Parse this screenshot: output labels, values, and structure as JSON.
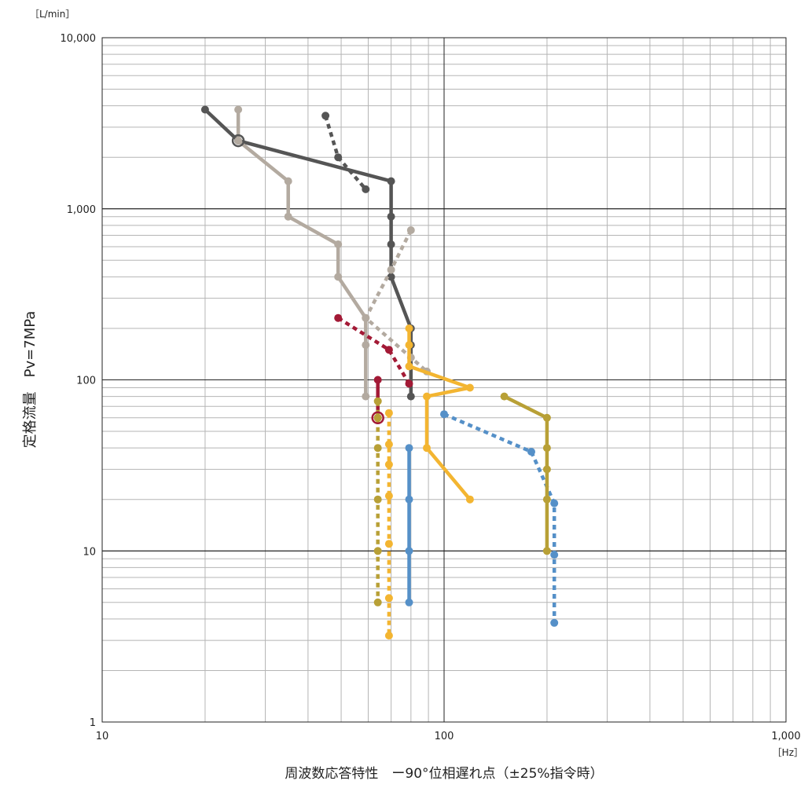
{
  "chart_data": {
    "type": "line",
    "xscale": "log",
    "yscale": "log",
    "xlim": [
      10,
      1000
    ],
    "ylim": [
      1,
      10000
    ],
    "grid": true,
    "xlabel": "周波数応答特性　ー90°位相遅れ点（±25%指令時）",
    "ylabel": "定格流量　Pv=7MPa",
    "x_unit": "［Hz］",
    "y_unit": "［L/min］",
    "x_tick_labels": [
      "10",
      "100",
      "1,000"
    ],
    "y_tick_labels": [
      "1",
      "10",
      "100",
      "1,000",
      "10,000"
    ],
    "series": [
      {
        "color": "#555555",
        "style": "solid",
        "points": [
          [
            20,
            3800
          ],
          [
            25,
            2500
          ],
          [
            70,
            1450
          ],
          [
            70,
            900
          ],
          [
            70,
            620
          ],
          [
            70,
            400
          ],
          [
            80,
            200
          ],
          [
            80,
            160
          ],
          [
            80,
            80
          ]
        ]
      },
      {
        "color": "#555555",
        "style": "dotted",
        "points": [
          [
            45,
            3500
          ],
          [
            49,
            2000
          ],
          [
            59,
            1300
          ]
        ]
      },
      {
        "color": "#b3aaa0",
        "style": "solid",
        "points": [
          [
            25,
            3800
          ],
          [
            25,
            2500
          ],
          [
            35,
            1450
          ],
          [
            35,
            900
          ],
          [
            49,
            620
          ],
          [
            49,
            400
          ],
          [
            59,
            230
          ],
          [
            59,
            160
          ],
          [
            59,
            80
          ]
        ]
      },
      {
        "color": "#b3aaa0",
        "style": "dotted",
        "points": [
          [
            80,
            750
          ],
          [
            70,
            440
          ],
          [
            59,
            230
          ],
          [
            80,
            135
          ],
          [
            89,
            112
          ]
        ]
      },
      {
        "color": "#a31a36",
        "style": "dotted",
        "points": [
          [
            49,
            230
          ],
          [
            69,
            150
          ],
          [
            79,
            95
          ]
        ]
      },
      {
        "color": "#a31a36",
        "style": "solid",
        "points": [
          [
            64,
            100
          ],
          [
            64,
            60
          ]
        ]
      },
      {
        "color": "#f3b531",
        "style": "solid",
        "points": [
          [
            79,
            200
          ],
          [
            79,
            160
          ],
          [
            79,
            120
          ],
          [
            119,
            90
          ],
          [
            89,
            80
          ],
          [
            89,
            40
          ],
          [
            119,
            20
          ]
        ]
      },
      {
        "color": "#b8a036",
        "style": "dotted",
        "points": [
          [
            64,
            75
          ],
          [
            64,
            60
          ],
          [
            64,
            40
          ],
          [
            64,
            20
          ],
          [
            64,
            10
          ],
          [
            64,
            5
          ]
        ]
      },
      {
        "color": "#f3b531",
        "style": "dotted",
        "points": [
          [
            69,
            64
          ],
          [
            69,
            42
          ],
          [
            69,
            32
          ],
          [
            69,
            21
          ],
          [
            69,
            11
          ],
          [
            69,
            5.3
          ],
          [
            69,
            3.2
          ]
        ]
      },
      {
        "color": "#5590c8",
        "style": "solid",
        "points": [
          [
            79,
            40
          ],
          [
            79,
            20
          ],
          [
            79,
            10
          ],
          [
            79,
            5
          ]
        ]
      },
      {
        "color": "#5590c8",
        "style": "dotted",
        "points": [
          [
            100,
            63
          ],
          [
            180,
            38
          ],
          [
            210,
            19
          ],
          [
            210,
            9.5
          ],
          [
            210,
            3.8
          ]
        ]
      },
      {
        "color": "#b8a036",
        "style": "solid",
        "points": [
          [
            150,
            80
          ],
          [
            200,
            60
          ],
          [
            200,
            40
          ],
          [
            200,
            30
          ],
          [
            200,
            20
          ],
          [
            200,
            10
          ]
        ]
      }
    ],
    "highlight_points": [
      {
        "x": 64,
        "y": 60,
        "color": "#a31a36"
      },
      {
        "x": 25,
        "y": 2500,
        "color": "#555555"
      }
    ]
  }
}
